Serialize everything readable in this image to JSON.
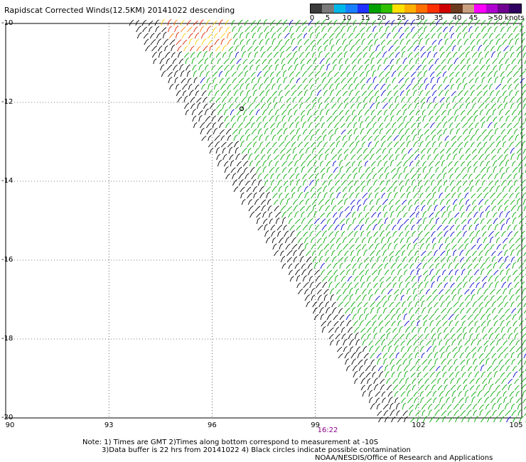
{
  "title": "Rapidscat Corrected Winds(12.5KM) 20141022 descending",
  "legend": {
    "labels": [
      "0",
      "5",
      "10",
      "15",
      "20",
      "25",
      "30",
      "35",
      "40",
      "45",
      ">50 knots"
    ],
    "colors": [
      "#3a3a3a",
      "#7a7a7a",
      "#00b8e8",
      "#1880ff",
      "#2030ff",
      "#00a000",
      "#30c000",
      "#ffe000",
      "#ffb000",
      "#ff7000",
      "#ff3000",
      "#d00000",
      "#6a3a20",
      "#c8a080",
      "#ff00ff",
      "#b000d0",
      "#700090",
      "#300060"
    ]
  },
  "axes": {
    "lon_labels": [
      "90",
      "93",
      "96",
      "99",
      "102",
      "105"
    ],
    "lat_labels": [
      "-10",
      "-12",
      "-14",
      "-16",
      "-18",
      "-20"
    ]
  },
  "time_label": "16:22",
  "notes": {
    "line1": "Note: 1) Times are GMT 2)Times along bottom correspond to measurement at -10S",
    "line2": "3)Data buffer is 22 hrs from 20141022 4) Black circles indicate possible contamination",
    "line3": "NOAA/NESDIS/Office of Research and Applications"
  },
  "wind_colors": {
    "edge": "#000000",
    "main": "#00aa00",
    "strong": "#0000cc",
    "yellow": "#ffcc00",
    "orange": "#ff7700",
    "red": "#dd2200"
  }
}
